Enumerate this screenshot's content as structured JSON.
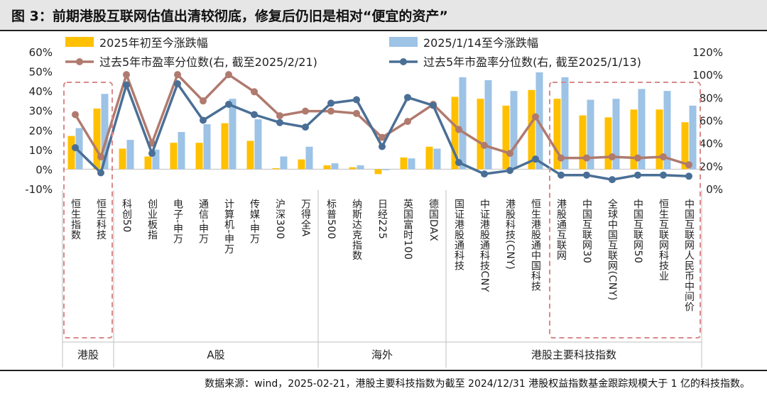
{
  "header": {
    "title": "图 3：前期港股互联网估值出清较彻底，修复后仍旧是相对“便宜的资产”"
  },
  "footer": {
    "source": "数据来源：wind，2025-02-21，港股主要科技指数为截至 2024/12/31 港股权益指数基金跟踪规模大于 1 亿的科技指数。"
  },
  "colors": {
    "bar1": "#FFC000",
    "bar2": "#9DC3E6",
    "line1": "#B07A6E",
    "line2": "#4A6F96",
    "dash_box": "#D98A8A",
    "axis": "#555555",
    "grid_text": "#222222"
  },
  "chart_data": {
    "type": "bar",
    "title": "",
    "categories": [
      "恒生指数",
      "恒生科技",
      "科创50",
      "创业板指",
      "电子-申万",
      "通信-申万",
      "计算机-申万",
      "传媒-申万",
      "沪深300",
      "万得全A",
      "标普500",
      "纳斯达克指数",
      "日经225",
      "英国富时100",
      "德国DAX",
      "国证港股通科技",
      "中证港股通科技CNY",
      "港股科技(CNY)",
      "恒生港股通中国科技",
      "港股通互联网",
      "中国互联网30",
      "全球中国互联网(CNY)",
      "中国互联网50",
      "恒生互联网科技业",
      "中国互联网人民币中间价"
    ],
    "groups": [
      {
        "label": "港股",
        "start": 0,
        "end": 1
      },
      {
        "label": "A股",
        "start": 2,
        "end": 9
      },
      {
        "label": "海外",
        "start": 10,
        "end": 14
      },
      {
        "label": "港股主要科技指数",
        "start": 15,
        "end": 24
      }
    ],
    "left_axis": {
      "min": -10,
      "max": 60,
      "step": 10,
      "ticks": [
        "-10%",
        "0%",
        "10%",
        "20%",
        "30%",
        "40%",
        "50%",
        "60%"
      ]
    },
    "right_axis": {
      "min": 0,
      "max": 120,
      "step": 20,
      "ticks": [
        "0%",
        "20%",
        "40%",
        "60%",
        "80%",
        "100%",
        "120%"
      ]
    },
    "series": [
      {
        "name": "2025年初至今涨跌幅",
        "type": "bar",
        "axis": "left",
        "values": [
          17,
          31,
          10.5,
          6.5,
          13.5,
          13.5,
          23.5,
          14.5,
          0.5,
          5,
          2,
          1,
          -2.5,
          6,
          11.5,
          37,
          36,
          32.5,
          40.5,
          36,
          27.5,
          26.5,
          30.5,
          30.5,
          24
        ]
      },
      {
        "name": "2025/1/14至今涨跌幅",
        "type": "bar",
        "axis": "left",
        "values": [
          21,
          38.5,
          15,
          10,
          19,
          23,
          36,
          25.5,
          6.5,
          11.5,
          3,
          2,
          -0.5,
          5.5,
          10.5,
          47,
          45.5,
          40,
          49.5,
          47,
          35.5,
          36,
          41,
          40,
          32.5
        ]
      },
      {
        "name": "过去5年市盈率分位数(右, 截至2025/2/21)",
        "type": "line",
        "axis": "right",
        "values": [
          65,
          28,
          100,
          40,
          100,
          77,
          100,
          85,
          64,
          68,
          68,
          66,
          45,
          59,
          74,
          52,
          38,
          31,
          63,
          27,
          27,
          28,
          27,
          28,
          21
        ]
      },
      {
        "name": "过去5年市盈率分位数(右, 截至2025/1/13)",
        "type": "line",
        "axis": "right",
        "values": [
          36,
          14,
          91,
          31,
          92,
          60,
          74,
          65,
          58,
          54,
          75,
          78,
          37,
          80,
          73,
          23,
          13,
          16,
          26,
          12,
          12,
          8,
          12,
          12,
          11
        ]
      }
    ],
    "legend_placement": "top",
    "highlight_boxes": [
      {
        "start": 0,
        "end": 1
      },
      {
        "start": 19,
        "end": 24
      }
    ]
  }
}
